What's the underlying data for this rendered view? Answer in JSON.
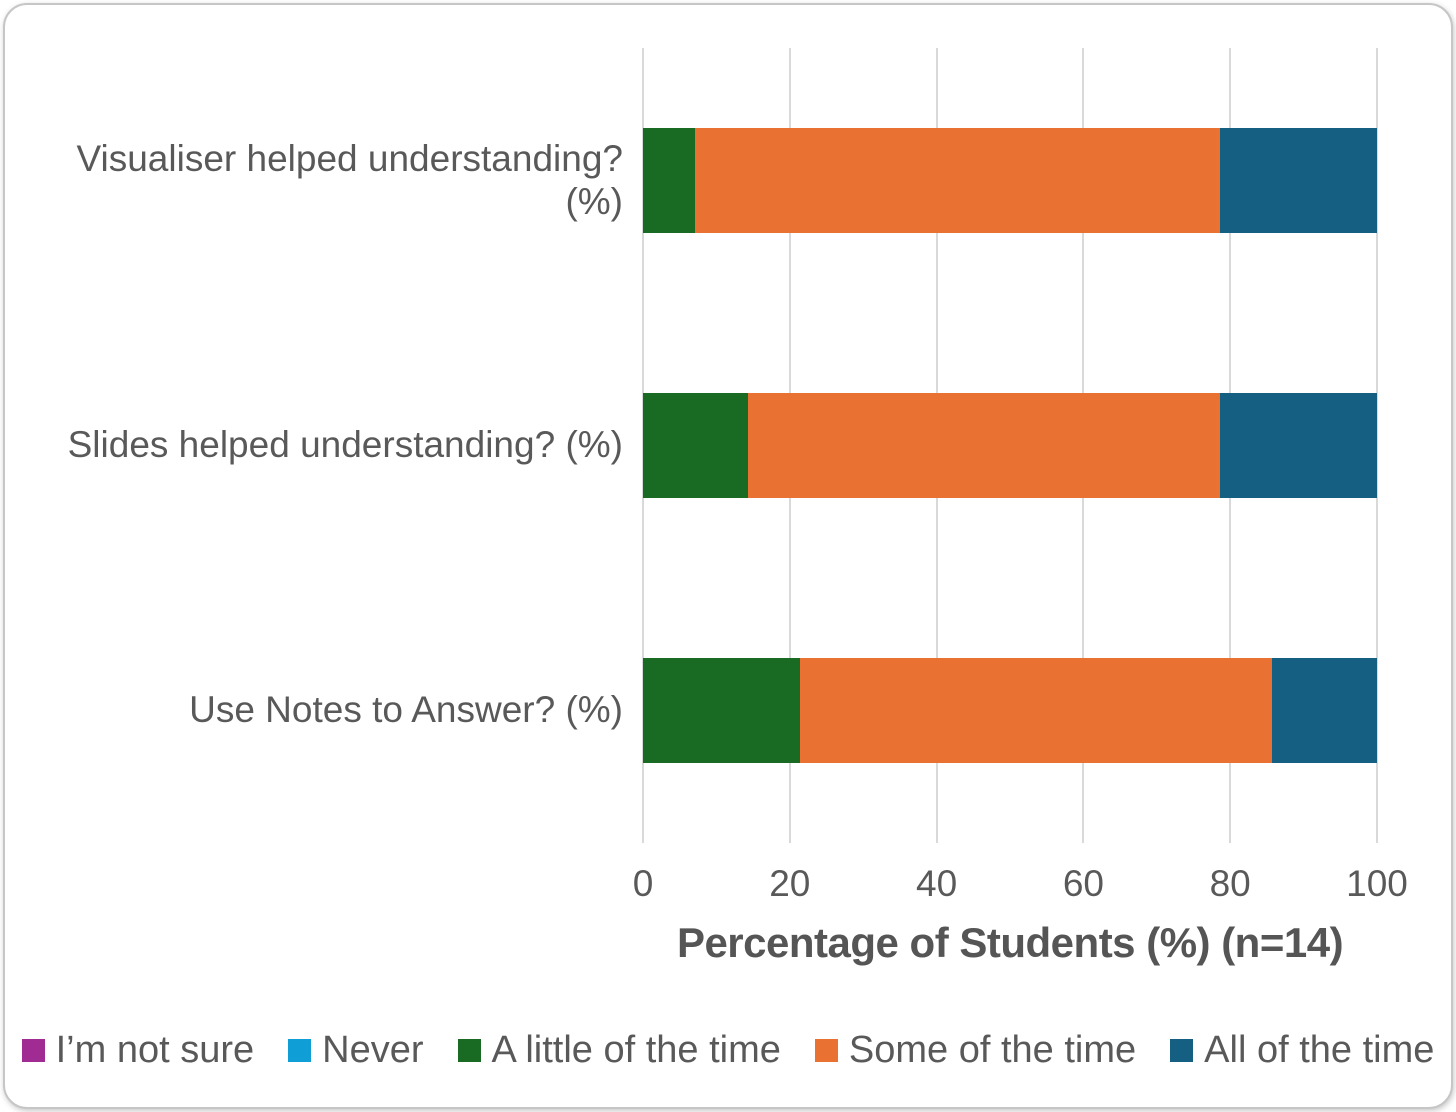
{
  "colors": {
    "grid": "#d9d9d9",
    "text": "#595959",
    "axis_title_text": "#555555"
  },
  "chart_data": {
    "type": "bar",
    "orientation": "horizontal",
    "stacked": true,
    "categories": [
      "Visualiser helped understanding? (%)",
      "Slides helped understanding? (%)",
      "Use Notes to Answer? (%)"
    ],
    "series": [
      {
        "name": "I’m not sure",
        "color": "#a02b93",
        "values": [
          0,
          0,
          0
        ]
      },
      {
        "name": "Never",
        "color": "#0f9ed5",
        "values": [
          0,
          0,
          0
        ]
      },
      {
        "name": "A little of the time",
        "color": "#196b24",
        "values": [
          7.1,
          14.3,
          21.4
        ]
      },
      {
        "name": "Some of the time",
        "color": "#e97132",
        "values": [
          71.5,
          64.3,
          64.3
        ]
      },
      {
        "name": "All of the time",
        "color": "#156082",
        "values": [
          21.4,
          21.4,
          14.3
        ]
      }
    ],
    "xlabel": "Percentage of Students (%) (n=14)",
    "ylabel": "",
    "x_ticks": [
      0,
      20,
      40,
      60,
      80,
      100
    ],
    "xlim": [
      0,
      100
    ],
    "grid": true,
    "legend_position": "bottom"
  }
}
